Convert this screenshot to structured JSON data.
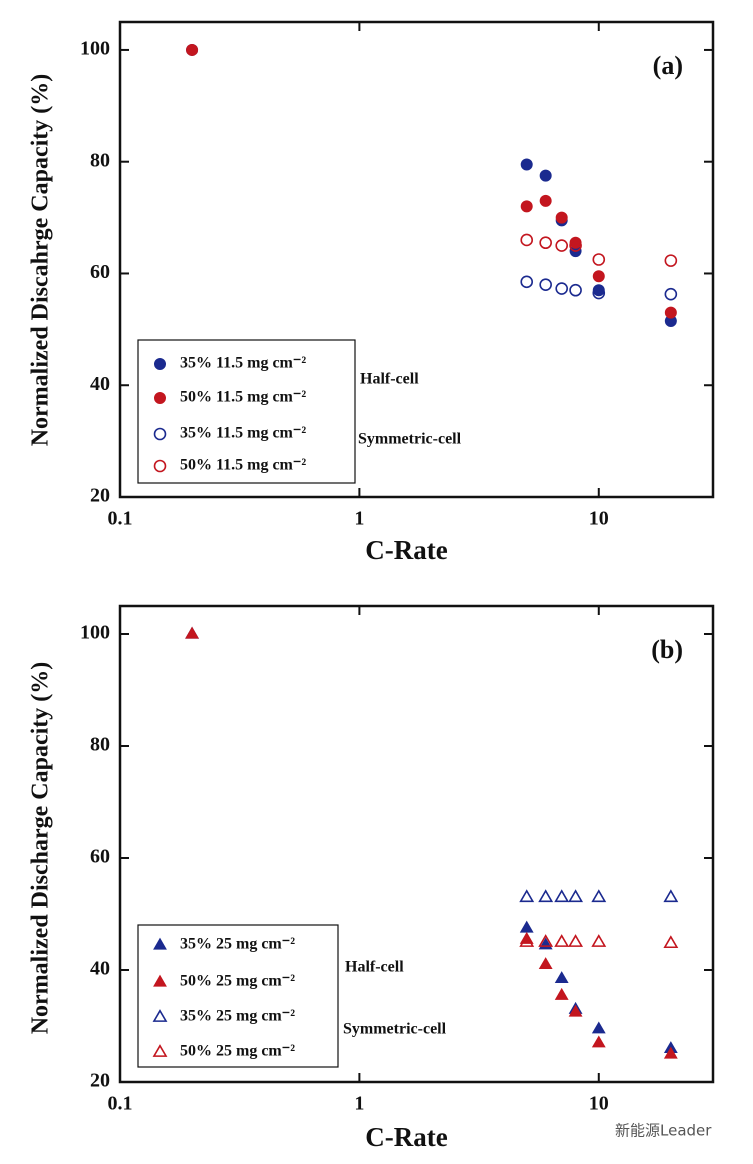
{
  "chart_data": [
    {
      "type": "scatter",
      "panel_label": "(a)",
      "x_label": "C-Rate",
      "y_label": "Normalized Discahrge Capacity (%)",
      "x": [
        0.2,
        5,
        6,
        7,
        8,
        10,
        20
      ],
      "xscale": "log",
      "xlim": [
        0.1,
        30
      ],
      "xticks": [
        0.1,
        1,
        10
      ],
      "ylim": [
        20,
        105
      ],
      "yticks": [
        20,
        40,
        60,
        80,
        100
      ],
      "series": [
        {
          "name": "35% 11.5 mg cm⁻²",
          "color": "#1b2a8f",
          "marker": "circle",
          "filled": true,
          "values": [
            100,
            79.5,
            77.5,
            69.5,
            64,
            57,
            51.5
          ]
        },
        {
          "name": "50% 11.5 mg cm⁻²",
          "color": "#c3161f",
          "marker": "circle",
          "filled": true,
          "values": [
            100,
            72,
            73,
            70,
            65.5,
            59.5,
            53
          ]
        },
        {
          "name": "35% 11.5 mg cm⁻²",
          "color": "#1b2a8f",
          "marker": "circle",
          "filled": false,
          "values": [
            null,
            58.5,
            58,
            57.3,
            57,
            56.5,
            56.3
          ]
        },
        {
          "name": "50% 11.5 mg cm⁻²",
          "color": "#c3161f",
          "marker": "circle",
          "filled": false,
          "values": [
            null,
            66,
            65.5,
            65,
            65,
            62.5,
            62.3
          ]
        }
      ],
      "annotations": [
        "Half-cell",
        "Symmetric-cell"
      ]
    },
    {
      "type": "scatter",
      "panel_label": "(b)",
      "x_label": "C-Rate",
      "y_label": "Normalized Discharge Capacity (%)",
      "x": [
        0.2,
        5,
        6,
        7,
        8,
        10,
        20
      ],
      "xscale": "log",
      "xlim": [
        0.1,
        30
      ],
      "xticks": [
        0.1,
        1,
        10
      ],
      "ylim": [
        20,
        105
      ],
      "yticks": [
        20,
        40,
        60,
        80,
        100
      ],
      "series": [
        {
          "name": "35% 25 mg cm⁻²",
          "color": "#1b2a8f",
          "marker": "triangle",
          "filled": true,
          "values": [
            100,
            47.5,
            44.5,
            38.5,
            33,
            29.5,
            26
          ]
        },
        {
          "name": "50% 25 mg cm⁻²",
          "color": "#c3161f",
          "marker": "triangle",
          "filled": true,
          "values": [
            100,
            45.5,
            41,
            35.5,
            32.5,
            27,
            25
          ]
        },
        {
          "name": "35% 25 mg cm⁻²",
          "color": "#1b2a8f",
          "marker": "triangle",
          "filled": false,
          "values": [
            null,
            53,
            53,
            53,
            53,
            53,
            53
          ]
        },
        {
          "name": "50% 25 mg cm⁻²",
          "color": "#c3161f",
          "marker": "triangle",
          "filled": false,
          "values": [
            null,
            45,
            45,
            45,
            45,
            45,
            44.8
          ]
        }
      ],
      "annotations": [
        "Half-cell",
        "Symmetric-cell"
      ]
    }
  ],
  "watermark": "新能源Leader"
}
